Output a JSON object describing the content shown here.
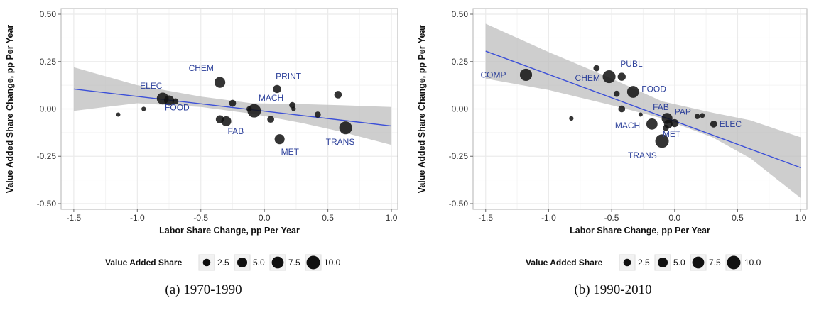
{
  "chart_data": [
    {
      "type": "scatter",
      "xlabel": "Labor Share Change, pp Per Year",
      "ylabel": "Value Added Share Change, pp Per Year",
      "xlim": [
        -1.6,
        1.05
      ],
      "ylim": [
        -0.53,
        0.53
      ],
      "xticks": [
        "-1.5",
        "-1.0",
        "-0.5",
        "0.0",
        "0.5",
        "1.0"
      ],
      "xtick_values": [
        -1.5,
        -1.0,
        -0.5,
        0.0,
        0.5,
        1.0
      ],
      "yticks": [
        "0.50",
        "0.25",
        "0.00",
        "-0.25",
        "-0.50"
      ],
      "ytick_values": [
        0.5,
        0.25,
        0.0,
        -0.25,
        -0.5
      ],
      "grid": true,
      "legend_title": "Value Added Share",
      "legend_items": [
        "2.5",
        "5.0",
        "7.5",
        "10.0"
      ],
      "legend_sizes": [
        2.5,
        5.0,
        7.5,
        10.0
      ],
      "legend_placement": "bottom",
      "fit_line": {
        "x": [
          -1.5,
          1.0
        ],
        "y": [
          0.105,
          -0.09
        ]
      },
      "confidence_band": {
        "x": [
          -1.5,
          -1.0,
          -0.5,
          -0.1,
          0.3,
          0.6,
          1.0
        ],
        "upper": [
          0.22,
          0.125,
          0.065,
          0.03,
          0.025,
          0.02,
          0.01
        ],
        "lower": [
          -0.01,
          0.03,
          0.01,
          -0.025,
          -0.075,
          -0.12,
          -0.19
        ]
      },
      "points": [
        {
          "x": -1.15,
          "y": -0.03,
          "size": 0.5,
          "label": ""
        },
        {
          "x": -0.95,
          "y": 0.0,
          "size": 0.6,
          "label": ""
        },
        {
          "x": -0.8,
          "y": 0.055,
          "size": 7.5,
          "label": "ELEC"
        },
        {
          "x": -0.75,
          "y": 0.045,
          "size": 5.0,
          "label": "FOOD"
        },
        {
          "x": -0.7,
          "y": 0.04,
          "size": 1.5,
          "label": ""
        },
        {
          "x": -0.35,
          "y": 0.14,
          "size": 6.0,
          "label": "CHEM"
        },
        {
          "x": -0.35,
          "y": -0.055,
          "size": 3.0,
          "label": ""
        },
        {
          "x": -0.3,
          "y": -0.065,
          "size": 5.0,
          "label": "FAB"
        },
        {
          "x": -0.25,
          "y": 0.03,
          "size": 2.0,
          "label": ""
        },
        {
          "x": -0.12,
          "y": 0.0,
          "size": 1.0,
          "label": ""
        },
        {
          "x": -0.08,
          "y": -0.01,
          "size": 10.0,
          "label": "MACH"
        },
        {
          "x": 0.05,
          "y": -0.055,
          "size": 2.0,
          "label": ""
        },
        {
          "x": 0.1,
          "y": 0.105,
          "size": 3.0,
          "label": "PRINT"
        },
        {
          "x": 0.12,
          "y": -0.16,
          "size": 5.0,
          "label": "MET"
        },
        {
          "x": 0.22,
          "y": 0.02,
          "size": 1.5,
          "label": ""
        },
        {
          "x": 0.23,
          "y": 0.0,
          "size": 0.6,
          "label": ""
        },
        {
          "x": 0.42,
          "y": -0.03,
          "size": 1.5,
          "label": ""
        },
        {
          "x": 0.58,
          "y": 0.075,
          "size": 2.5,
          "label": ""
        },
        {
          "x": 0.64,
          "y": -0.1,
          "size": 9.0,
          "label": "TRANS"
        }
      ],
      "caption": "(a) 1970-1990"
    },
    {
      "type": "scatter",
      "xlabel": "Labor Share Change, pp Per Year",
      "ylabel": "Value Added Share Change, pp Per Year",
      "xlim": [
        -1.6,
        1.05
      ],
      "ylim": [
        -0.53,
        0.53
      ],
      "xticks": [
        "-1.5",
        "-1.0",
        "-0.5",
        "0.0",
        "0.5",
        "1.0"
      ],
      "xtick_values": [
        -1.5,
        -1.0,
        -0.5,
        0.0,
        0.5,
        1.0
      ],
      "yticks": [
        "0.50",
        "0.25",
        "0.00",
        "-0.25",
        "-0.50"
      ],
      "ytick_values": [
        0.5,
        0.25,
        0.0,
        -0.25,
        -0.5
      ],
      "grid": true,
      "legend_title": "Value Added Share",
      "legend_items": [
        "2.5",
        "5.0",
        "7.5",
        "10.0"
      ],
      "legend_sizes": [
        2.5,
        5.0,
        7.5,
        10.0
      ],
      "legend_placement": "bottom",
      "fit_line": {
        "x": [
          -1.5,
          1.0
        ],
        "y": [
          0.305,
          -0.31
        ]
      },
      "confidence_band": {
        "x": [
          -1.5,
          -1.0,
          -0.5,
          -0.1,
          0.3,
          0.6,
          1.0
        ],
        "upper": [
          0.45,
          0.3,
          0.16,
          0.04,
          -0.02,
          -0.06,
          -0.15
        ],
        "lower": [
          0.16,
          0.1,
          0.02,
          -0.05,
          -0.15,
          -0.26,
          -0.47
        ]
      },
      "points": [
        {
          "x": -1.18,
          "y": 0.18,
          "size": 8.0,
          "label": "COMP"
        },
        {
          "x": -0.82,
          "y": -0.05,
          "size": 0.6,
          "label": ""
        },
        {
          "x": -0.62,
          "y": 0.215,
          "size": 1.5,
          "label": ""
        },
        {
          "x": -0.52,
          "y": 0.17,
          "size": 9.0,
          "label": "CHEM"
        },
        {
          "x": -0.46,
          "y": 0.08,
          "size": 1.5,
          "label": ""
        },
        {
          "x": -0.42,
          "y": 0.17,
          "size": 3.0,
          "label": "PUBL"
        },
        {
          "x": -0.42,
          "y": 0.0,
          "size": 2.0,
          "label": ""
        },
        {
          "x": -0.33,
          "y": 0.09,
          "size": 7.5,
          "label": "FOOD"
        },
        {
          "x": -0.27,
          "y": -0.03,
          "size": 0.5,
          "label": ""
        },
        {
          "x": -0.18,
          "y": -0.08,
          "size": 6.5,
          "label": "MACH"
        },
        {
          "x": -0.1,
          "y": -0.17,
          "size": 10.0,
          "label": "TRANS"
        },
        {
          "x": -0.06,
          "y": -0.05,
          "size": 6.0,
          "label": "FAB"
        },
        {
          "x": -0.05,
          "y": -0.08,
          "size": 3.5,
          "label": "MET"
        },
        {
          "x": -0.07,
          "y": -0.1,
          "size": 1.5,
          "label": ""
        },
        {
          "x": 0.0,
          "y": -0.075,
          "size": 3.0,
          "label": "PAP"
        },
        {
          "x": 0.18,
          "y": -0.04,
          "size": 1.0,
          "label": ""
        },
        {
          "x": 0.22,
          "y": -0.035,
          "size": 0.8,
          "label": ""
        },
        {
          "x": 0.31,
          "y": -0.08,
          "size": 2.0,
          "label": "ELEC"
        }
      ],
      "caption": "(b) 1990-2010"
    }
  ],
  "colors": {
    "panel_bg": "#ffffff",
    "grid": "#ebebeb",
    "border": "#b3b3b3",
    "band": "#bdbdbd",
    "fit_line": "#3b4fd8",
    "point": "#111111",
    "label": "#2b3f9a",
    "axis_text": "#333333"
  }
}
